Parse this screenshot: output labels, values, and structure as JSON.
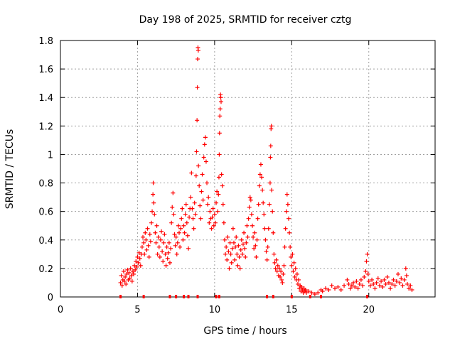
{
  "chart_data": {
    "type": "scatter",
    "title": "Day 198 of 2025, SRMTID for receiver cztg",
    "xlabel": "GPS time / hours",
    "ylabel": "SRMTID / TECUs",
    "xlim": [
      0,
      24.3
    ],
    "ylim": [
      0,
      1.8
    ],
    "xticks": [
      0,
      5,
      10,
      15,
      20
    ],
    "xtick_labels": [
      "0",
      "5",
      "10",
      "15",
      "20"
    ],
    "yticks": [
      0,
      0.2,
      0.4,
      0.6,
      0.8,
      1,
      1.2,
      1.4,
      1.6,
      1.8
    ],
    "ytick_labels": [
      "0",
      "0.2",
      "0.4",
      "0.6",
      "0.8",
      "1",
      "1.2",
      "1.4",
      "1.6",
      "1.8"
    ],
    "grid": true,
    "marker": "+",
    "color": "#ff0000",
    "series": [
      {
        "name": "SRMTID",
        "points": [
          [
            3.9,
            0.1
          ],
          [
            3.95,
            0.15
          ],
          [
            4.0,
            0.08
          ],
          [
            4.05,
            0.12
          ],
          [
            4.1,
            0.18
          ],
          [
            4.15,
            0.11
          ],
          [
            4.2,
            0.14
          ],
          [
            4.25,
            0.09
          ],
          [
            4.3,
            0.16
          ],
          [
            4.35,
            0.19
          ],
          [
            4.4,
            0.12
          ],
          [
            4.45,
            0.17
          ],
          [
            4.5,
            0.13
          ],
          [
            4.55,
            0.2
          ],
          [
            4.6,
            0.15
          ],
          [
            4.65,
            0.11
          ],
          [
            4.7,
            0.18
          ],
          [
            4.75,
            0.16
          ],
          [
            4.8,
            0.22
          ],
          [
            4.85,
            0.19
          ],
          [
            4.9,
            0.25
          ],
          [
            4.95,
            0.21
          ],
          [
            5.0,
            0.28
          ],
          [
            5.05,
            0.24
          ],
          [
            5.1,
            0.31
          ],
          [
            5.15,
            0.27
          ],
          [
            5.2,
            0.22
          ],
          [
            5.25,
            0.3
          ],
          [
            5.3,
            0.35
          ],
          [
            5.35,
            0.42
          ],
          [
            5.4,
            0.38
          ],
          [
            5.45,
            0.3
          ],
          [
            5.5,
            0.45
          ],
          [
            5.55,
            0.4
          ],
          [
            5.6,
            0.33
          ],
          [
            5.65,
            0.48
          ],
          [
            5.7,
            0.36
          ],
          [
            5.75,
            0.28
          ],
          [
            5.8,
            0.44
          ],
          [
            5.85,
            0.39
          ],
          [
            5.9,
            0.52
          ],
          [
            5.95,
            0.6
          ],
          [
            6.0,
            0.72
          ],
          [
            6.02,
            0.8
          ],
          [
            6.05,
            0.66
          ],
          [
            6.1,
            0.58
          ],
          [
            6.15,
            0.45
          ],
          [
            6.2,
            0.38
          ],
          [
            6.25,
            0.5
          ],
          [
            6.3,
            0.3
          ],
          [
            6.35,
            0.42
          ],
          [
            6.4,
            0.35
          ],
          [
            6.45,
            0.28
          ],
          [
            6.5,
            0.4
          ],
          [
            6.55,
            0.46
          ],
          [
            6.6,
            0.32
          ],
          [
            6.65,
            0.25
          ],
          [
            6.7,
            0.38
          ],
          [
            6.75,
            0.44
          ],
          [
            6.8,
            0.3
          ],
          [
            6.85,
            0.22
          ],
          [
            6.9,
            0.35
          ],
          [
            6.95,
            0.27
          ],
          [
            7.0,
            0.31
          ],
          [
            7.05,
            0.38
          ],
          [
            7.1,
            0.24
          ],
          [
            7.15,
            0.34
          ],
          [
            7.2,
            0.52
          ],
          [
            7.25,
            0.63
          ],
          [
            7.3,
            0.73
          ],
          [
            7.35,
            0.58
          ],
          [
            7.4,
            0.44
          ],
          [
            7.45,
            0.36
          ],
          [
            7.5,
            0.42
          ],
          [
            7.55,
            0.3
          ],
          [
            7.6,
            0.38
          ],
          [
            7.65,
            0.5
          ],
          [
            7.7,
            0.45
          ],
          [
            7.75,
            0.35
          ],
          [
            7.8,
            0.48
          ],
          [
            7.85,
            0.55
          ],
          [
            7.9,
            0.62
          ],
          [
            7.95,
            0.4
          ],
          [
            8.0,
            0.5
          ],
          [
            8.05,
            0.45
          ],
          [
            8.1,
            0.58
          ],
          [
            8.15,
            0.65
          ],
          [
            8.2,
            0.52
          ],
          [
            8.25,
            0.43
          ],
          [
            8.3,
            0.34
          ],
          [
            8.35,
            0.56
          ],
          [
            8.4,
            0.62
          ],
          [
            8.45,
            0.7
          ],
          [
            8.5,
            0.87
          ],
          [
            8.55,
            0.62
          ],
          [
            8.6,
            0.55
          ],
          [
            8.65,
            0.48
          ],
          [
            8.7,
            0.66
          ],
          [
            8.75,
            0.58
          ],
          [
            8.8,
            0.85
          ],
          [
            8.83,
            1.02
          ],
          [
            8.86,
            1.24
          ],
          [
            8.88,
            1.47
          ],
          [
            8.9,
            1.67
          ],
          [
            8.92,
            1.75
          ],
          [
            8.94,
            1.73
          ],
          [
            8.95,
            0.92
          ],
          [
            9.0,
            0.78
          ],
          [
            9.05,
            0.64
          ],
          [
            9.1,
            0.55
          ],
          [
            9.15,
            0.74
          ],
          [
            9.2,
            0.86
          ],
          [
            9.25,
            0.68
          ],
          [
            9.3,
            0.98
          ],
          [
            9.35,
            1.07
          ],
          [
            9.4,
            1.12
          ],
          [
            9.45,
            0.95
          ],
          [
            9.5,
            0.8
          ],
          [
            9.55,
            0.65
          ],
          [
            9.6,
            0.7
          ],
          [
            9.65,
            0.52
          ],
          [
            9.7,
            0.6
          ],
          [
            9.75,
            0.55
          ],
          [
            9.8,
            0.48
          ],
          [
            9.85,
            0.56
          ],
          [
            9.9,
            0.62
          ],
          [
            9.95,
            0.5
          ],
          [
            10.0,
            0.58
          ],
          [
            10.05,
            0.52
          ],
          [
            10.1,
            0.66
          ],
          [
            10.15,
            0.74
          ],
          [
            10.2,
            0.6
          ],
          [
            10.25,
            0.72
          ],
          [
            10.28,
            0.84
          ],
          [
            10.3,
            1.0
          ],
          [
            10.32,
            1.15
          ],
          [
            10.34,
            1.27
          ],
          [
            10.36,
            1.32
          ],
          [
            10.38,
            1.42
          ],
          [
            10.4,
            1.4
          ],
          [
            10.42,
            1.37
          ],
          [
            10.45,
            0.86
          ],
          [
            10.5,
            0.78
          ],
          [
            10.55,
            0.65
          ],
          [
            10.6,
            0.52
          ],
          [
            10.65,
            0.4
          ],
          [
            10.7,
            0.3
          ],
          [
            10.75,
            0.35
          ],
          [
            10.8,
            0.26
          ],
          [
            10.85,
            0.42
          ],
          [
            10.9,
            0.32
          ],
          [
            10.95,
            0.2
          ],
          [
            11.0,
            0.38
          ],
          [
            11.05,
            0.3
          ],
          [
            11.1,
            0.24
          ],
          [
            11.15,
            0.34
          ],
          [
            11.2,
            0.48
          ],
          [
            11.25,
            0.38
          ],
          [
            11.3,
            0.26
          ],
          [
            11.35,
            0.35
          ],
          [
            11.4,
            0.42
          ],
          [
            11.45,
            0.3
          ],
          [
            11.5,
            0.22
          ],
          [
            11.55,
            0.36
          ],
          [
            11.6,
            0.28
          ],
          [
            11.65,
            0.2
          ],
          [
            11.7,
            0.33
          ],
          [
            11.75,
            0.4
          ],
          [
            11.8,
            0.3
          ],
          [
            11.85,
            0.37
          ],
          [
            11.9,
            0.45
          ],
          [
            11.95,
            0.34
          ],
          [
            12.0,
            0.28
          ],
          [
            12.05,
            0.38
          ],
          [
            12.1,
            0.5
          ],
          [
            12.15,
            0.42
          ],
          [
            12.2,
            0.55
          ],
          [
            12.25,
            0.63
          ],
          [
            12.3,
            0.7
          ],
          [
            12.35,
            0.68
          ],
          [
            12.4,
            0.58
          ],
          [
            12.45,
            0.5
          ],
          [
            12.5,
            0.42
          ],
          [
            12.55,
            0.34
          ],
          [
            12.6,
            0.45
          ],
          [
            12.65,
            0.36
          ],
          [
            12.7,
            0.28
          ],
          [
            12.75,
            0.4
          ],
          [
            12.8,
            0.55
          ],
          [
            12.85,
            0.65
          ],
          [
            12.9,
            0.78
          ],
          [
            12.95,
            0.86
          ],
          [
            13.0,
            0.93
          ],
          [
            13.05,
            0.84
          ],
          [
            13.1,
            0.75
          ],
          [
            13.15,
            0.66
          ],
          [
            13.2,
            0.58
          ],
          [
            13.25,
            0.48
          ],
          [
            13.3,
            0.4
          ],
          [
            13.35,
            0.32
          ],
          [
            13.4,
            0.26
          ],
          [
            13.45,
            0.35
          ],
          [
            13.5,
            0.48
          ],
          [
            13.55,
            0.65
          ],
          [
            13.6,
            0.8
          ],
          [
            13.62,
            0.98
          ],
          [
            13.64,
            1.06
          ],
          [
            13.66,
            1.18
          ],
          [
            13.68,
            1.2
          ],
          [
            13.7,
            0.75
          ],
          [
            13.75,
            0.6
          ],
          [
            13.8,
            0.45
          ],
          [
            13.85,
            0.3
          ],
          [
            13.9,
            0.24
          ],
          [
            13.95,
            0.2
          ],
          [
            14.0,
            0.26
          ],
          [
            14.05,
            0.18
          ],
          [
            14.1,
            0.22
          ],
          [
            14.15,
            0.15
          ],
          [
            14.2,
            0.2
          ],
          [
            14.25,
            0.14
          ],
          [
            14.3,
            0.18
          ],
          [
            14.35,
            0.12
          ],
          [
            14.4,
            0.1
          ],
          [
            14.45,
            0.16
          ],
          [
            14.5,
            0.22
          ],
          [
            14.55,
            0.35
          ],
          [
            14.6,
            0.48
          ],
          [
            14.65,
            0.6
          ],
          [
            14.7,
            0.72
          ],
          [
            14.75,
            0.65
          ],
          [
            14.8,
            0.55
          ],
          [
            14.85,
            0.45
          ],
          [
            14.9,
            0.35
          ],
          [
            14.95,
            0.28
          ],
          [
            15.0,
            0.22
          ],
          [
            15.05,
            0.3
          ],
          [
            15.1,
            0.18
          ],
          [
            15.15,
            0.24
          ],
          [
            15.2,
            0.14
          ],
          [
            15.25,
            0.2
          ],
          [
            15.3,
            0.12
          ],
          [
            15.35,
            0.16
          ],
          [
            15.4,
            0.09
          ],
          [
            15.45,
            0.12
          ],
          [
            15.5,
            0.06
          ],
          [
            15.55,
            0.08
          ],
          [
            15.6,
            0.04
          ],
          [
            15.65,
            0.07
          ],
          [
            15.7,
            0.05
          ],
          [
            15.75,
            0.03
          ],
          [
            15.8,
            0.06
          ],
          [
            15.85,
            0.04
          ],
          [
            15.9,
            0.05
          ],
          [
            15.95,
            0.03
          ],
          [
            16.1,
            0.04
          ],
          [
            16.3,
            0.03
          ],
          [
            16.5,
            0.02
          ],
          [
            16.7,
            0.03
          ],
          [
            16.9,
            0.05
          ],
          [
            17.0,
            0.04
          ],
          [
            17.2,
            0.06
          ],
          [
            17.4,
            0.05
          ],
          [
            17.6,
            0.08
          ],
          [
            17.8,
            0.06
          ],
          [
            18.0,
            0.07
          ],
          [
            18.2,
            0.05
          ],
          [
            18.4,
            0.08
          ],
          [
            18.6,
            0.12
          ],
          [
            18.7,
            0.09
          ],
          [
            18.8,
            0.06
          ],
          [
            18.9,
            0.08
          ],
          [
            19.0,
            0.1
          ],
          [
            19.1,
            0.07
          ],
          [
            19.2,
            0.11
          ],
          [
            19.3,
            0.06
          ],
          [
            19.4,
            0.09
          ],
          [
            19.5,
            0.12
          ],
          [
            19.6,
            0.08
          ],
          [
            19.7,
            0.14
          ],
          [
            19.8,
            0.18
          ],
          [
            19.85,
            0.25
          ],
          [
            19.9,
            0.3
          ],
          [
            19.95,
            0.16
          ],
          [
            20.0,
            0.11
          ],
          [
            20.1,
            0.08
          ],
          [
            20.2,
            0.12
          ],
          [
            20.3,
            0.09
          ],
          [
            20.4,
            0.06
          ],
          [
            20.5,
            0.1
          ],
          [
            20.6,
            0.13
          ],
          [
            20.7,
            0.08
          ],
          [
            20.8,
            0.11
          ],
          [
            20.9,
            0.07
          ],
          [
            21.0,
            0.12
          ],
          [
            21.1,
            0.09
          ],
          [
            21.2,
            0.14
          ],
          [
            21.3,
            0.1
          ],
          [
            21.4,
            0.06
          ],
          [
            21.5,
            0.09
          ],
          [
            21.6,
            0.12
          ],
          [
            21.7,
            0.08
          ],
          [
            21.8,
            0.11
          ],
          [
            21.9,
            0.16
          ],
          [
            22.0,
            0.1
          ],
          [
            22.1,
            0.13
          ],
          [
            22.2,
            0.08
          ],
          [
            22.3,
            0.12
          ],
          [
            22.4,
            0.2
          ],
          [
            22.45,
            0.15
          ],
          [
            22.5,
            0.09
          ],
          [
            22.6,
            0.06
          ],
          [
            22.7,
            0.08
          ],
          [
            22.8,
            0.05
          ]
        ]
      }
    ],
    "gap_markers_x": [
      3.9,
      5.4,
      7.1,
      7.5,
      8.0,
      8.3,
      8.9,
      10.1,
      10.3,
      13.4,
      13.8,
      15.0,
      16.2,
      16.9,
      19.9
    ]
  }
}
